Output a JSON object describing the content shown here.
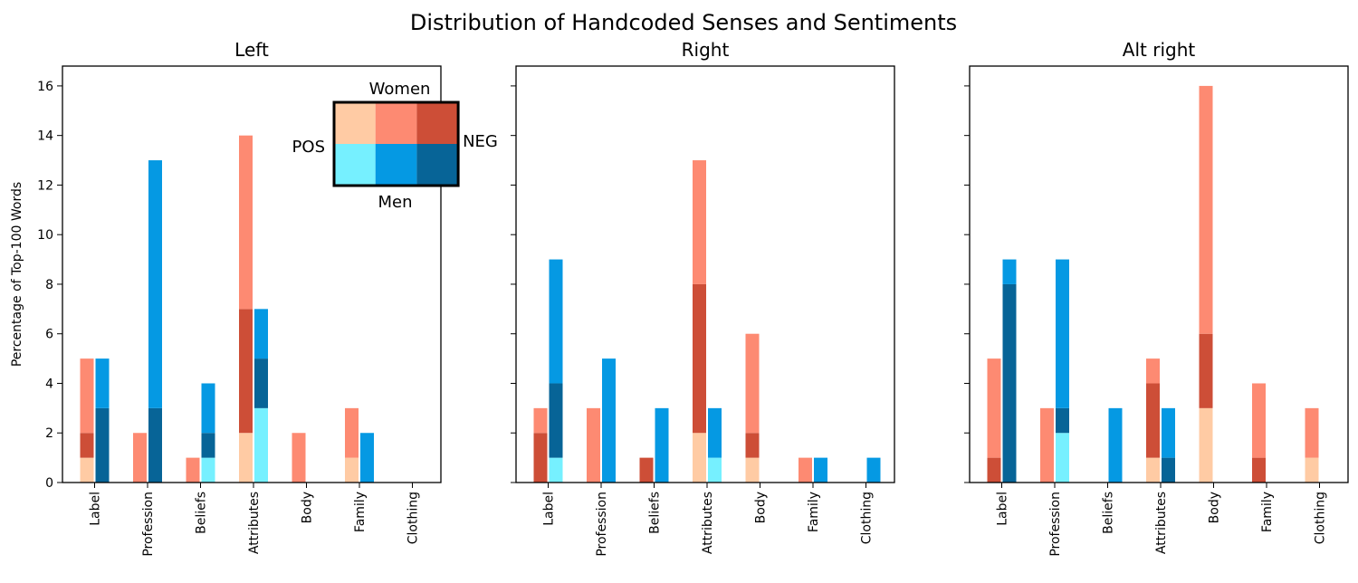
{
  "chart_data": {
    "type": "bar",
    "title": "Distribution of Handcoded Senses and Sentiments",
    "ylabel": "Percentage of Top-100 Words",
    "xlabel": "",
    "ylim": [
      0,
      16.8
    ],
    "yticks": [
      "0",
      "2",
      "4",
      "6",
      "8",
      "10",
      "12",
      "14",
      "16"
    ],
    "categories": [
      "Label",
      "Profession",
      "Beliefs",
      "Attributes",
      "Body",
      "Family",
      "Clothing"
    ],
    "stacking": "pos / neutral / neg cumulative stacked per gender",
    "colors": {
      "women_pos": "#ffcba4",
      "women_neu": "#fd8a72",
      "women_neg": "#cd4e37",
      "men_pos": "#76f0ff",
      "men_neu": "#0599e3",
      "men_neg": "#076497"
    },
    "legend": {
      "top": "Women",
      "bottom": "Men",
      "left": "POS",
      "right": "NEG",
      "placement": "top-right of first panel"
    },
    "panels": [
      {
        "title": "Left",
        "women": {
          "pos": [
            1,
            0,
            0,
            2,
            0,
            1,
            0
          ],
          "neu": [
            3,
            2,
            1,
            7,
            2,
            2,
            0
          ],
          "neg": [
            1,
            0,
            0,
            5,
            0,
            0,
            0
          ]
        },
        "men": {
          "pos": [
            0,
            0,
            1,
            3,
            0,
            0,
            0
          ],
          "neu": [
            2,
            10,
            2,
            2,
            0,
            2,
            0
          ],
          "neg": [
            3,
            3,
            1,
            2,
            0,
            0,
            0
          ]
        }
      },
      {
        "title": "Right",
        "women": {
          "pos": [
            0,
            0,
            0,
            2,
            1,
            0,
            0
          ],
          "neu": [
            1,
            3,
            0,
            5,
            4,
            1,
            0
          ],
          "neg": [
            2,
            0,
            1,
            6,
            1,
            0,
            0
          ]
        },
        "men": {
          "pos": [
            1,
            0,
            0,
            1,
            0,
            0,
            0
          ],
          "neu": [
            5,
            5,
            3,
            2,
            0,
            1,
            1
          ],
          "neg": [
            3,
            0,
            0,
            0,
            0,
            0,
            0
          ]
        }
      },
      {
        "title": "Alt right",
        "women": {
          "pos": [
            0,
            0,
            0,
            1,
            3,
            0,
            1
          ],
          "neu": [
            4,
            3,
            0,
            1,
            10,
            3,
            2
          ],
          "neg": [
            1,
            0,
            0,
            3,
            3,
            1,
            0
          ]
        },
        "men": {
          "pos": [
            0,
            2,
            0,
            0,
            0,
            0,
            0
          ],
          "neu": [
            1,
            6,
            3,
            2,
            0,
            0,
            0
          ],
          "neg": [
            8,
            1,
            0,
            1,
            0,
            0,
            0
          ]
        }
      }
    ]
  }
}
